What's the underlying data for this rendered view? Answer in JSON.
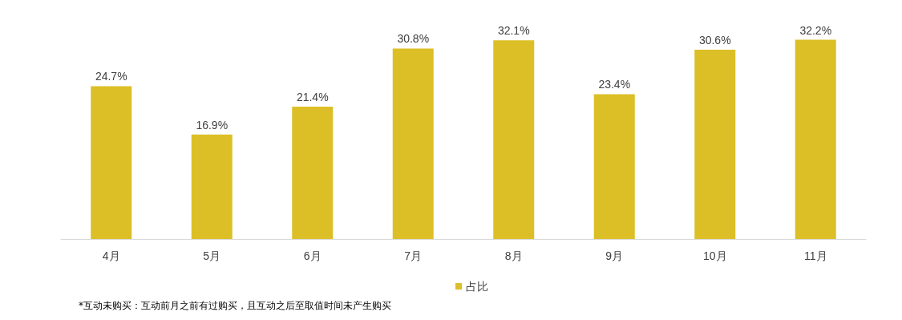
{
  "chart_data": {
    "type": "bar",
    "categories": [
      "4月",
      "5月",
      "6月",
      "7月",
      "8月",
      "9月",
      "10月",
      "11月"
    ],
    "series": [
      {
        "name": "占比",
        "color": "#dcbf26",
        "values": [
          24.7,
          16.9,
          21.4,
          30.8,
          32.1,
          23.4,
          30.6,
          32.2
        ],
        "value_labels": [
          "24.7%",
          "16.9%",
          "21.4%",
          "30.8%",
          "32.1%",
          "23.4%",
          "30.6%",
          "32.2%"
        ]
      }
    ],
    "legend": "bottom",
    "grid": false,
    "tick_labels": "x",
    "annotations": [
      "*互动未购买：互动前月之前有过购买，且互动之后至取值时间未产生购买"
    ]
  }
}
